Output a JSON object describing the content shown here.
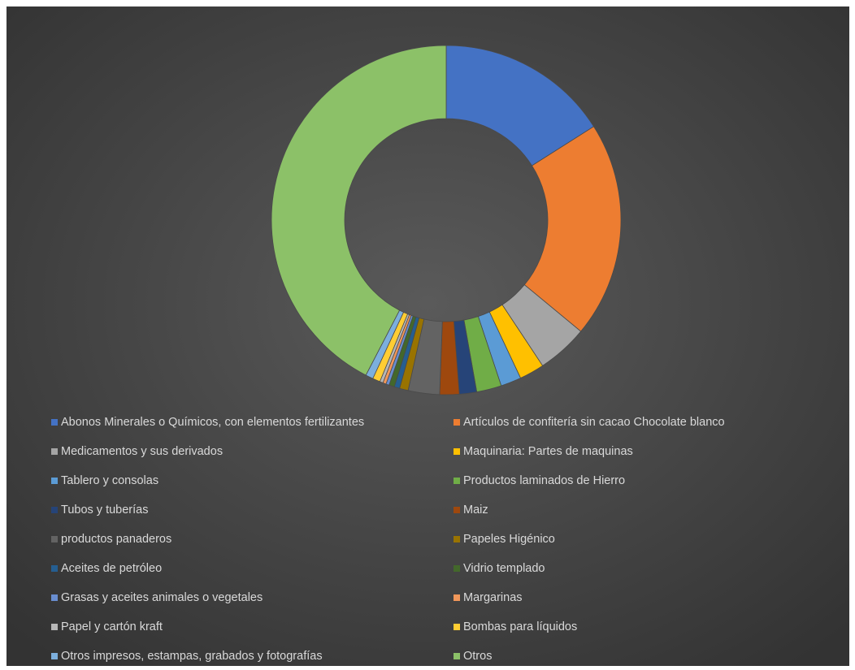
{
  "chart_data": {
    "type": "donut",
    "categories": [
      "Abonos Minerales o Químicos, con elementos fertilizantes",
      "Artículos de confitería sin cacao Chocolate blanco",
      "Medicamentos y sus derivados",
      "Maquinaria: Partes de maquinas",
      "Tablero y consolas",
      "Productos laminados de Hierro",
      "Tubos y tuberías",
      "Maiz",
      "productos panaderos",
      "Papeles Higénico",
      "Aceites de petróleo",
      "Vidrio templado",
      "Grasas y aceites animales o vegetales",
      "Margarinas",
      "Papel y cartón kraft",
      "Bombas para líquidos",
      "Otros impresos, estampas, grabados y fotografías",
      "Otros"
    ],
    "values": [
      16,
      20,
      4.7,
      2.3,
      1.9,
      2.3,
      1.6,
      1.8,
      2.9,
      0.8,
      0.5,
      0.5,
      0.3,
      0.3,
      0.3,
      0.7,
      0.7,
      42.4
    ],
    "colors": [
      "#4472c4",
      "#ed7d31",
      "#a5a5a5",
      "#ffc000",
      "#5b9bd5",
      "#70ad47",
      "#264478",
      "#9e480e",
      "#636363",
      "#997300",
      "#255e91",
      "#43682b",
      "#698ed0",
      "#f1975a",
      "#b7b7b7",
      "#ffcd33",
      "#7cafdd",
      "#8cc168"
    ],
    "legend": "bottom"
  }
}
